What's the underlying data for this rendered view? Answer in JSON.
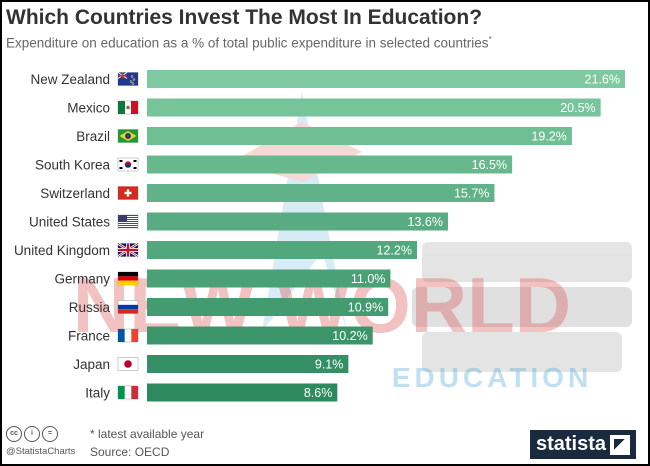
{
  "title": "Which Countries Invest The Most In Education?",
  "subtitle": "Expenditure on education as a % of total public expenditure in selected countries",
  "subtitle_mark": "*",
  "footnote": "* latest available year",
  "source": "Source: OECD",
  "handle": "@StatistaCharts",
  "brand": "statista",
  "watermark": {
    "line1": "NEW WORLD",
    "line2": "EDUCATION"
  },
  "colors": {
    "bar_top": "#7ec9a0",
    "bar_bottom": "#2d8a5e",
    "label": "#333333",
    "value_text": "#ffffff"
  },
  "chart_data": {
    "type": "bar",
    "orientation": "horizontal",
    "categories": [
      "New Zealand",
      "Mexico",
      "Brazil",
      "South Korea",
      "Switzerland",
      "United States",
      "United Kingdom",
      "Germany",
      "Russia",
      "France",
      "Japan",
      "Italy"
    ],
    "values": [
      21.6,
      20.5,
      19.2,
      16.5,
      15.7,
      13.6,
      12.2,
      11.0,
      10.9,
      10.2,
      9.1,
      8.6
    ],
    "value_labels": [
      "21.6%",
      "20.5%",
      "19.2%",
      "16.5%",
      "15.7%",
      "13.6%",
      "12.2%",
      "11.0%",
      "10.9%",
      "10.2%",
      "9.1%",
      "8.6%"
    ],
    "flags": [
      "flag-new-zealand-icon",
      "flag-mexico-icon",
      "flag-brazil-icon",
      "flag-south-korea-icon",
      "flag-switzerland-icon",
      "flag-united-states-icon",
      "flag-united-kingdom-icon",
      "flag-germany-icon",
      "flag-russia-icon",
      "flag-france-icon",
      "flag-japan-icon",
      "flag-italy-icon"
    ],
    "xlim": [
      0,
      21.6
    ],
    "grid": false,
    "legend": false
  }
}
